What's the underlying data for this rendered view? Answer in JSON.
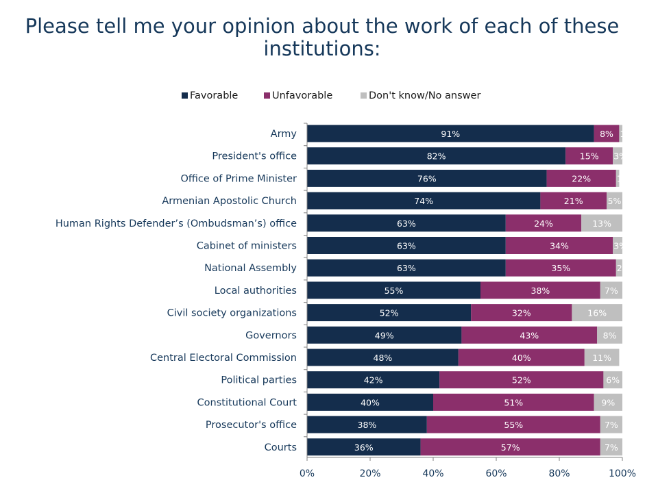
{
  "page": {
    "title_line1": "Please tell me your opinion about the work of each of these",
    "title_line2": "institutions:"
  },
  "colors": {
    "favorable": "#142d4c",
    "unfavorable": "#8b2f6b",
    "dont_know": "#bfbfbf",
    "label_dark": "#16385a",
    "axis": "#808080"
  },
  "chart_data": {
    "type": "bar",
    "orientation": "horizontal",
    "stacked": true,
    "title": "Please tell me your opinion about the work of each of these institutions:",
    "categories": [
      "Army",
      "President's office",
      "Office of Prime Minister",
      "Armenian Apostolic Church",
      "Human Rights Defender’s (Ombudsman’s)  office",
      "Cabinet of ministers",
      "National Assembly",
      "Local authorities",
      "Civil society organizations",
      "Governors",
      "Central Electoral Commission",
      "Political parties",
      "Constitutional Court",
      "Prosecutor's office",
      "Courts"
    ],
    "series": [
      {
        "name": "Favorable",
        "values": [
          91,
          82,
          76,
          74,
          63,
          63,
          63,
          55,
          52,
          49,
          48,
          42,
          40,
          38,
          36
        ]
      },
      {
        "name": "Unfavorable",
        "values": [
          8,
          15,
          22,
          21,
          24,
          34,
          35,
          38,
          32,
          43,
          40,
          52,
          51,
          55,
          57
        ]
      },
      {
        "name": "Don't know/No answer",
        "values": [
          1,
          3,
          1,
          5,
          13,
          3,
          2,
          7,
          16,
          8,
          11,
          6,
          9,
          7,
          7
        ]
      }
    ],
    "xticks": [
      "0%",
      "20%",
      "40%",
      "60%",
      "80%",
      "100%"
    ],
    "xlim": [
      0,
      100
    ],
    "value_suffix": "%",
    "legend_position": "top-center",
    "grid": false
  }
}
